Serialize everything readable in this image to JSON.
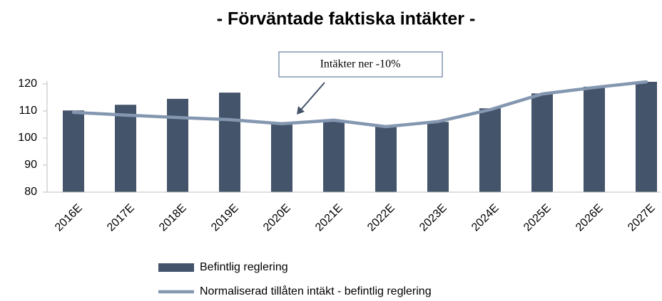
{
  "chart_data": {
    "type": "bar_line",
    "title": "- Förväntade faktiska intäkter -",
    "categories": [
      "2016E",
      "2017E",
      "2018E",
      "2019E",
      "2020E",
      "2021E",
      "2022E",
      "2023E",
      "2024E",
      "2025E",
      "2026E",
      "2027E"
    ],
    "series": [
      {
        "name": "Befintlig reglering",
        "type": "bar",
        "color": "#44546a",
        "values": [
          110.2,
          112.3,
          114.5,
          116.8,
          105.5,
          106.3,
          104.5,
          106,
          111,
          116.5,
          119,
          120.8
        ]
      },
      {
        "name": "Normaliserad tillåten intäkt - befintlig reglering",
        "type": "line",
        "color": "#8497b0",
        "values": [
          109.5,
          108.5,
          107.6,
          106.8,
          105.3,
          106.6,
          104.2,
          106.1,
          110.5,
          116.3,
          118.7,
          120.8
        ]
      }
    ],
    "annotation": "Intäkter ner -10%",
    "ylim": [
      80,
      120
    ],
    "yticks": [
      80,
      90,
      100,
      110,
      120
    ],
    "grid": false
  }
}
